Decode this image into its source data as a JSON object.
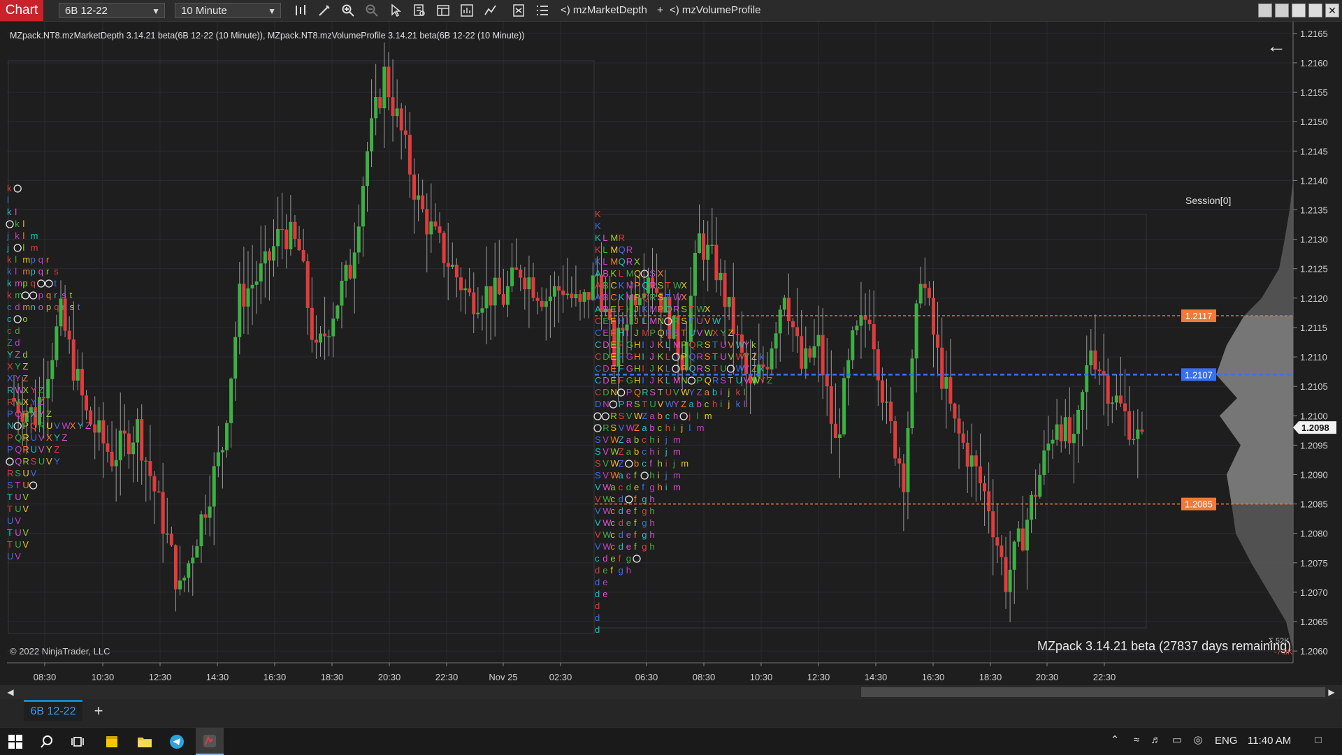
{
  "toolbar": {
    "chart_label": "Chart",
    "instrument": "6B 12-22",
    "interval": "10 Minute",
    "indicator_1": "<) mzMarketDepth",
    "plus": "+",
    "indicator_2": "<) mzVolumeProfile",
    "icons": [
      "bar-style-icon",
      "drawing-tool-icon",
      "zoom-in-icon",
      "zoom-out-icon",
      "pointer-icon",
      "data-box-icon",
      "properties-icon",
      "strategies-icon",
      "chart-trader-icon",
      "templates-icon",
      "list-icon"
    ],
    "window_buttons": [
      "restore-icon",
      "maximize-icon",
      "minimize-icon",
      "resize-icon",
      "close-icon"
    ]
  },
  "chart": {
    "indicator_title": "MZpack.NT8.mzMarketDepth 3.14.21 beta(6B 12-22 (10 Minute)), MZpack.NT8.mzVolumeProfile 3.14.21 beta(6B 12-22 (10 Minute))",
    "copyright": "© 2022 NinjaTrader, LLC",
    "banner": "MZpack 3.14.21 beta  (27837 days remaining)",
    "session_label": "Session[0]",
    "sum_label": "Σ 52K",
    "neg_label": "-7.3K",
    "current_price": "1.2098",
    "level_labels": [
      {
        "value": "1.2117",
        "color": "#f07a3a"
      },
      {
        "value": "1.2107",
        "color": "#3b6ff0"
      },
      {
        "value": "1.2085",
        "color": "#f07a3a"
      }
    ],
    "colors": {
      "bull": "#3cb043",
      "bear": "#e03c3c",
      "background": "#1e1e1e",
      "grid": "#2b2b33",
      "profile": "#5a5a5a"
    }
  },
  "chart_data": {
    "type": "candlestick",
    "instrument": "6B 12-22",
    "interval": "10 Minute",
    "y_ticks": [
      "1.2165",
      "1.2160",
      "1.2155",
      "1.2150",
      "1.2145",
      "1.2140",
      "1.2135",
      "1.2130",
      "1.2125",
      "1.2120",
      "1.2115",
      "1.2110",
      "1.2105",
      "1.2100",
      "1.2095",
      "1.2090",
      "1.2085",
      "1.2080",
      "1.2075",
      "1.2070",
      "1.2065",
      "1.2060"
    ],
    "x_ticks": [
      "08:30",
      "10:30",
      "12:30",
      "14:30",
      "16:30",
      "18:30",
      "20:30",
      "22:30",
      "Nov 25",
      "02:30",
      "06:30",
      "08:30",
      "10:30",
      "12:30",
      "14:30",
      "16:30",
      "18:30",
      "20:30",
      "22:30"
    ],
    "ylim": [
      1.2058,
      1.2167
    ],
    "horizontal_levels": [
      1.2117,
      1.2107,
      1.2085
    ],
    "last_price": 1.2098,
    "price_path": [
      [
        0,
        1.2103
      ],
      [
        6,
        1.21
      ],
      [
        12,
        1.2117
      ],
      [
        18,
        1.21
      ],
      [
        24,
        1.2093
      ],
      [
        30,
        1.2098
      ],
      [
        36,
        1.2082
      ],
      [
        40,
        1.207
      ],
      [
        44,
        1.208
      ],
      [
        50,
        1.2095
      ],
      [
        54,
        1.212
      ],
      [
        60,
        1.2125
      ],
      [
        64,
        1.2132
      ],
      [
        68,
        1.2128
      ],
      [
        72,
        1.211
      ],
      [
        76,
        1.2118
      ],
      [
        80,
        1.2125
      ],
      [
        84,
        1.2145
      ],
      [
        88,
        1.2158
      ],
      [
        92,
        1.2148
      ],
      [
        96,
        1.2136
      ],
      [
        100,
        1.213
      ],
      [
        104,
        1.2125
      ],
      [
        108,
        1.212
      ],
      [
        112,
        1.2121
      ],
      [
        116,
        1.212
      ],
      [
        120,
        1.2125
      ],
      [
        126,
        1.212
      ],
      [
        130,
        1.2122
      ],
      [
        134,
        1.2118
      ],
      [
        138,
        1.2124
      ],
      [
        142,
        1.211
      ],
      [
        146,
        1.212
      ],
      [
        150,
        1.2125
      ],
      [
        154,
        1.2118
      ],
      [
        158,
        1.211
      ],
      [
        162,
        1.213
      ],
      [
        166,
        1.2125
      ],
      [
        170,
        1.2115
      ],
      [
        174,
        1.2104
      ],
      [
        178,
        1.211
      ],
      [
        182,
        1.2122
      ],
      [
        186,
        1.2108
      ],
      [
        190,
        1.2112
      ],
      [
        194,
        1.2095
      ],
      [
        198,
        1.2112
      ],
      [
        202,
        1.2118
      ],
      [
        206,
        1.21
      ],
      [
        210,
        1.209
      ],
      [
        214,
        1.2125
      ],
      [
        218,
        1.211
      ],
      [
        222,
        1.2098
      ],
      [
        226,
        1.2092
      ],
      [
        230,
        1.2085
      ],
      [
        234,
        1.2072
      ],
      [
        238,
        1.208
      ],
      [
        242,
        1.209
      ],
      [
        246,
        1.21
      ],
      [
        250,
        1.2094
      ],
      [
        254,
        1.2112
      ],
      [
        258,
        1.2105
      ],
      [
        262,
        1.21
      ],
      [
        266,
        1.2095
      ]
    ],
    "volume_profile": [
      [
        1.2135,
        5
      ],
      [
        1.213,
        12
      ],
      [
        1.2125,
        20
      ],
      [
        1.212,
        45
      ],
      [
        1.2117,
        70
      ],
      [
        1.2112,
        95
      ],
      [
        1.2107,
        110
      ],
      [
        1.2103,
        80
      ],
      [
        1.21,
        105
      ],
      [
        1.2095,
        75
      ],
      [
        1.209,
        95
      ],
      [
        1.2085,
        88
      ],
      [
        1.208,
        82
      ],
      [
        1.2075,
        60
      ],
      [
        1.207,
        35
      ],
      [
        1.2065,
        10
      ]
    ]
  },
  "tpo": {
    "left_rows": [
      "kO",
      "l",
      "kl",
      "Okl",
      "jklm",
      "jOlm",
      "klmpqr",
      "klmpqrs",
      "kmpqOOt",
      "kmOOpqrst",
      "cdmnopqrst",
      "cOo",
      "cd",
      "Zd",
      "YZd",
      "XYZ",
      "XYZ",
      "RWXYZ",
      "RWXYZ",
      "PQRXYZ",
      "NOPQRUVWXYZ",
      "PQRUVXYZ",
      "PQRUVYZ",
      "OQRSUVY",
      "RSUV",
      "STUO",
      "TUV",
      "TUV",
      "UV",
      "TUV",
      "TUV",
      "UV"
    ],
    "right_rows": [
      "K",
      "K",
      "KLMR",
      "KLMQR",
      "KLMQRX",
      "ABKLMQOSX",
      "ABCKMPQRSTWX",
      "ABCKMPQRSTWX",
      "ABEFHJKMPQRSTWX",
      "CEFHIJLMNORSTUVW",
      "CEFHIJMPQRSTUVWXYZ",
      "CDEFGHIJKLMPQRSTUVWYk",
      "CDEFGHIJKLOPQRSTUVWYZk",
      "CDEFGHIJKLOPQRSTUOWYZk",
      "CDEFGHIJKLMNOPQRSTUVWYZ",
      "CDNOPQRSTUVWYZabijkl",
      "DNOPRSTUVWYZabchijkl",
      "OORSVWZabchOjlm",
      "ORSVWZabchijlm",
      "SVWZabchijm",
      "SVWZabchijm",
      "SVWZObcfhijm",
      "SVWacfOhijm",
      "VWacdefghim",
      "VWcdOfgh",
      "VWcdefgh",
      "VWcdefgh",
      "VWcdefgh",
      "VWcdefgh",
      "cdefgO",
      "defgh",
      "de",
      "de",
      "d",
      "d",
      "d"
    ]
  },
  "tabs": {
    "instrument_tab": "6B 12-22",
    "add_tab": "+"
  },
  "taskbar": {
    "apps": [
      "windows-start-icon",
      "search-icon",
      "task-view-icon",
      "sticky-notes-icon",
      "file-explorer-icon",
      "telegram-icon",
      "ninjatrader-icon"
    ],
    "language": "ENG",
    "time": "11:40 AM",
    "tray": [
      "chevron-up-icon",
      "wifi-icon",
      "volume-icon",
      "battery-icon",
      "meet-icon",
      "notification-icon"
    ]
  }
}
